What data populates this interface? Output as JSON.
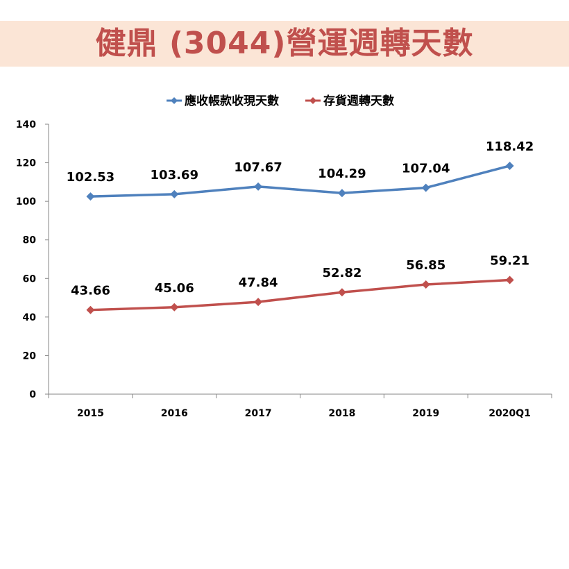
{
  "title": "健鼎 (3044)營運週轉天數",
  "chart_data": {
    "type": "line",
    "categories": [
      "2015",
      "2016",
      "2017",
      "2018",
      "2019",
      "2020Q1"
    ],
    "series": [
      {
        "name": "應收帳款收現天數",
        "values": [
          102.53,
          103.69,
          107.67,
          104.29,
          107.04,
          118.42
        ],
        "color": "#4f81bd",
        "labels": [
          "102.53",
          "103.69",
          "107.67",
          "104.29",
          "107.04",
          "118.42"
        ]
      },
      {
        "name": "存貨週轉天數",
        "values": [
          43.66,
          45.06,
          47.84,
          52.82,
          56.85,
          59.21
        ],
        "color": "#c0504d",
        "labels": [
          "43.66",
          "45.06",
          "47.84",
          "52.82",
          "56.85",
          "59.21"
        ]
      }
    ],
    "ylim": [
      0,
      140
    ],
    "yticks": [
      "0",
      "20",
      "40",
      "60",
      "80",
      "100",
      "120",
      "140"
    ],
    "grid": false,
    "legend": "top-center",
    "marker": "diamond"
  }
}
